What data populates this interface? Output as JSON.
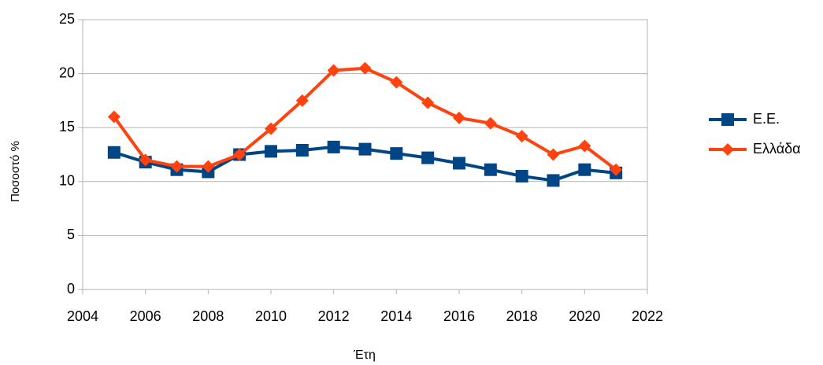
{
  "chart_data": {
    "type": "line",
    "x_label": "Έτη",
    "y_label": "Ποσοστό %",
    "x": [
      2005,
      2006,
      2007,
      2008,
      2009,
      2010,
      2011,
      2012,
      2013,
      2014,
      2015,
      2016,
      2017,
      2018,
      2019,
      2020,
      2021
    ],
    "series": [
      {
        "name": "Ε.Ε.",
        "color": "#004586",
        "marker": "square",
        "values": [
          12.7,
          11.8,
          11.1,
          10.9,
          12.5,
          12.8,
          12.9,
          13.2,
          13.0,
          12.6,
          12.2,
          11.7,
          11.1,
          10.5,
          10.1,
          11.1,
          10.8
        ]
      },
      {
        "name": "Ελλάδα",
        "color": "#ff420e",
        "marker": "diamond",
        "values": [
          16.0,
          12.0,
          11.4,
          11.4,
          12.5,
          14.9,
          17.5,
          20.3,
          20.5,
          19.2,
          17.3,
          15.9,
          15.4,
          14.2,
          12.5,
          13.3,
          11.1
        ]
      }
    ],
    "xlim": [
      2004,
      2022
    ],
    "xticks": [
      2004,
      2006,
      2008,
      2010,
      2012,
      2014,
      2016,
      2018,
      2020,
      2022
    ],
    "ylim": [
      0,
      25
    ],
    "yticks": [
      0,
      5,
      10,
      15,
      20,
      25
    ],
    "grid": true,
    "legend": "right"
  }
}
